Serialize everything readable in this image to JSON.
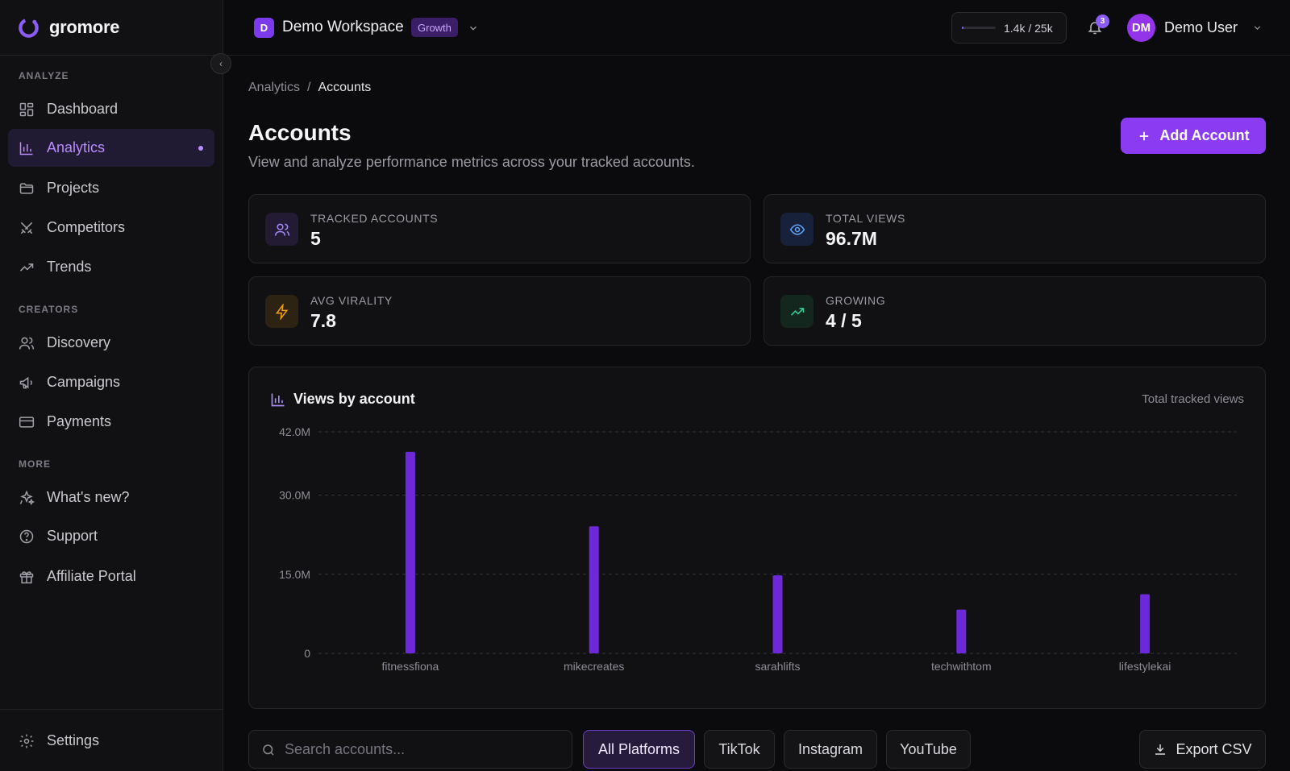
{
  "brand": {
    "name": "gromore"
  },
  "sidebar": {
    "sections": [
      {
        "label": "ANALYZE"
      },
      {
        "label": "CREATORS"
      },
      {
        "label": "MORE"
      }
    ],
    "items": [
      {
        "label": "Dashboard",
        "icon": "grid-icon"
      },
      {
        "label": "Analytics",
        "icon": "bar-chart-icon",
        "active": true
      },
      {
        "label": "Projects",
        "icon": "folder-icon"
      },
      {
        "label": "Competitors",
        "icon": "swords-icon"
      },
      {
        "label": "Trends",
        "icon": "trending-up-icon"
      },
      {
        "label": "Discovery",
        "icon": "users-icon"
      },
      {
        "label": "Campaigns",
        "icon": "megaphone-icon"
      },
      {
        "label": "Payments",
        "icon": "credit-card-icon"
      },
      {
        "label": "What's new?",
        "icon": "sparkles-icon"
      },
      {
        "label": "Support",
        "icon": "help-circle-icon"
      },
      {
        "label": "Affiliate Portal",
        "icon": "gift-icon"
      }
    ],
    "settings": {
      "label": "Settings",
      "icon": "gear-icon"
    }
  },
  "topbar": {
    "workspace": {
      "initial": "D",
      "name": "Demo Workspace",
      "plan": "Growth"
    },
    "usage": {
      "text": "1.4k / 25k",
      "fraction": 0.056
    },
    "notifications": {
      "count": "3"
    },
    "user": {
      "initials": "DM",
      "name": "Demo User"
    }
  },
  "breadcrumb": {
    "parent": "Analytics",
    "separator": "/",
    "current": "Accounts"
  },
  "page": {
    "title": "Accounts",
    "subtitle": "View and analyze performance metrics across your tracked accounts.",
    "add_button": "Add Account"
  },
  "stats": [
    {
      "label": "TRACKED ACCOUNTS",
      "value": "5",
      "icon": "users-icon",
      "color": "#a78bfa"
    },
    {
      "label": "TOTAL VIEWS",
      "value": "96.7M",
      "icon": "eye-icon",
      "color": "#60a5fa"
    },
    {
      "label": "AVG VIRALITY",
      "value": "7.8",
      "icon": "zap-icon",
      "color": "#f59e0b"
    },
    {
      "label": "GROWING",
      "value": "4 / 5",
      "icon": "trending-up-icon",
      "color": "#34d399"
    }
  ],
  "chart_data": {
    "type": "bar",
    "title": "Views by account",
    "subtitle": "Total tracked views",
    "categories": [
      "fitnessfiona",
      "mikecreates",
      "sarahlifts",
      "techwithtom",
      "lifestylekai"
    ],
    "values": [
      38.2,
      24.1,
      14.8,
      8.3,
      11.2
    ],
    "unit": "M",
    "ylim": [
      0,
      42
    ],
    "yticks": [
      {
        "value": 0,
        "label": "0"
      },
      {
        "value": 15,
        "label": "15.0M"
      },
      {
        "value": 30,
        "label": "30.0M"
      },
      {
        "value": 42,
        "label": "42.0M"
      }
    ],
    "bar_color": "#6d28d9",
    "grid": true,
    "legend": "none"
  },
  "toolbar": {
    "search_placeholder": "Search accounts...",
    "filters": [
      {
        "label": "All Platforms",
        "active": true
      },
      {
        "label": "TikTok",
        "active": false
      },
      {
        "label": "Instagram",
        "active": false
      },
      {
        "label": "YouTube",
        "active": false
      }
    ],
    "export_label": "Export CSV"
  }
}
